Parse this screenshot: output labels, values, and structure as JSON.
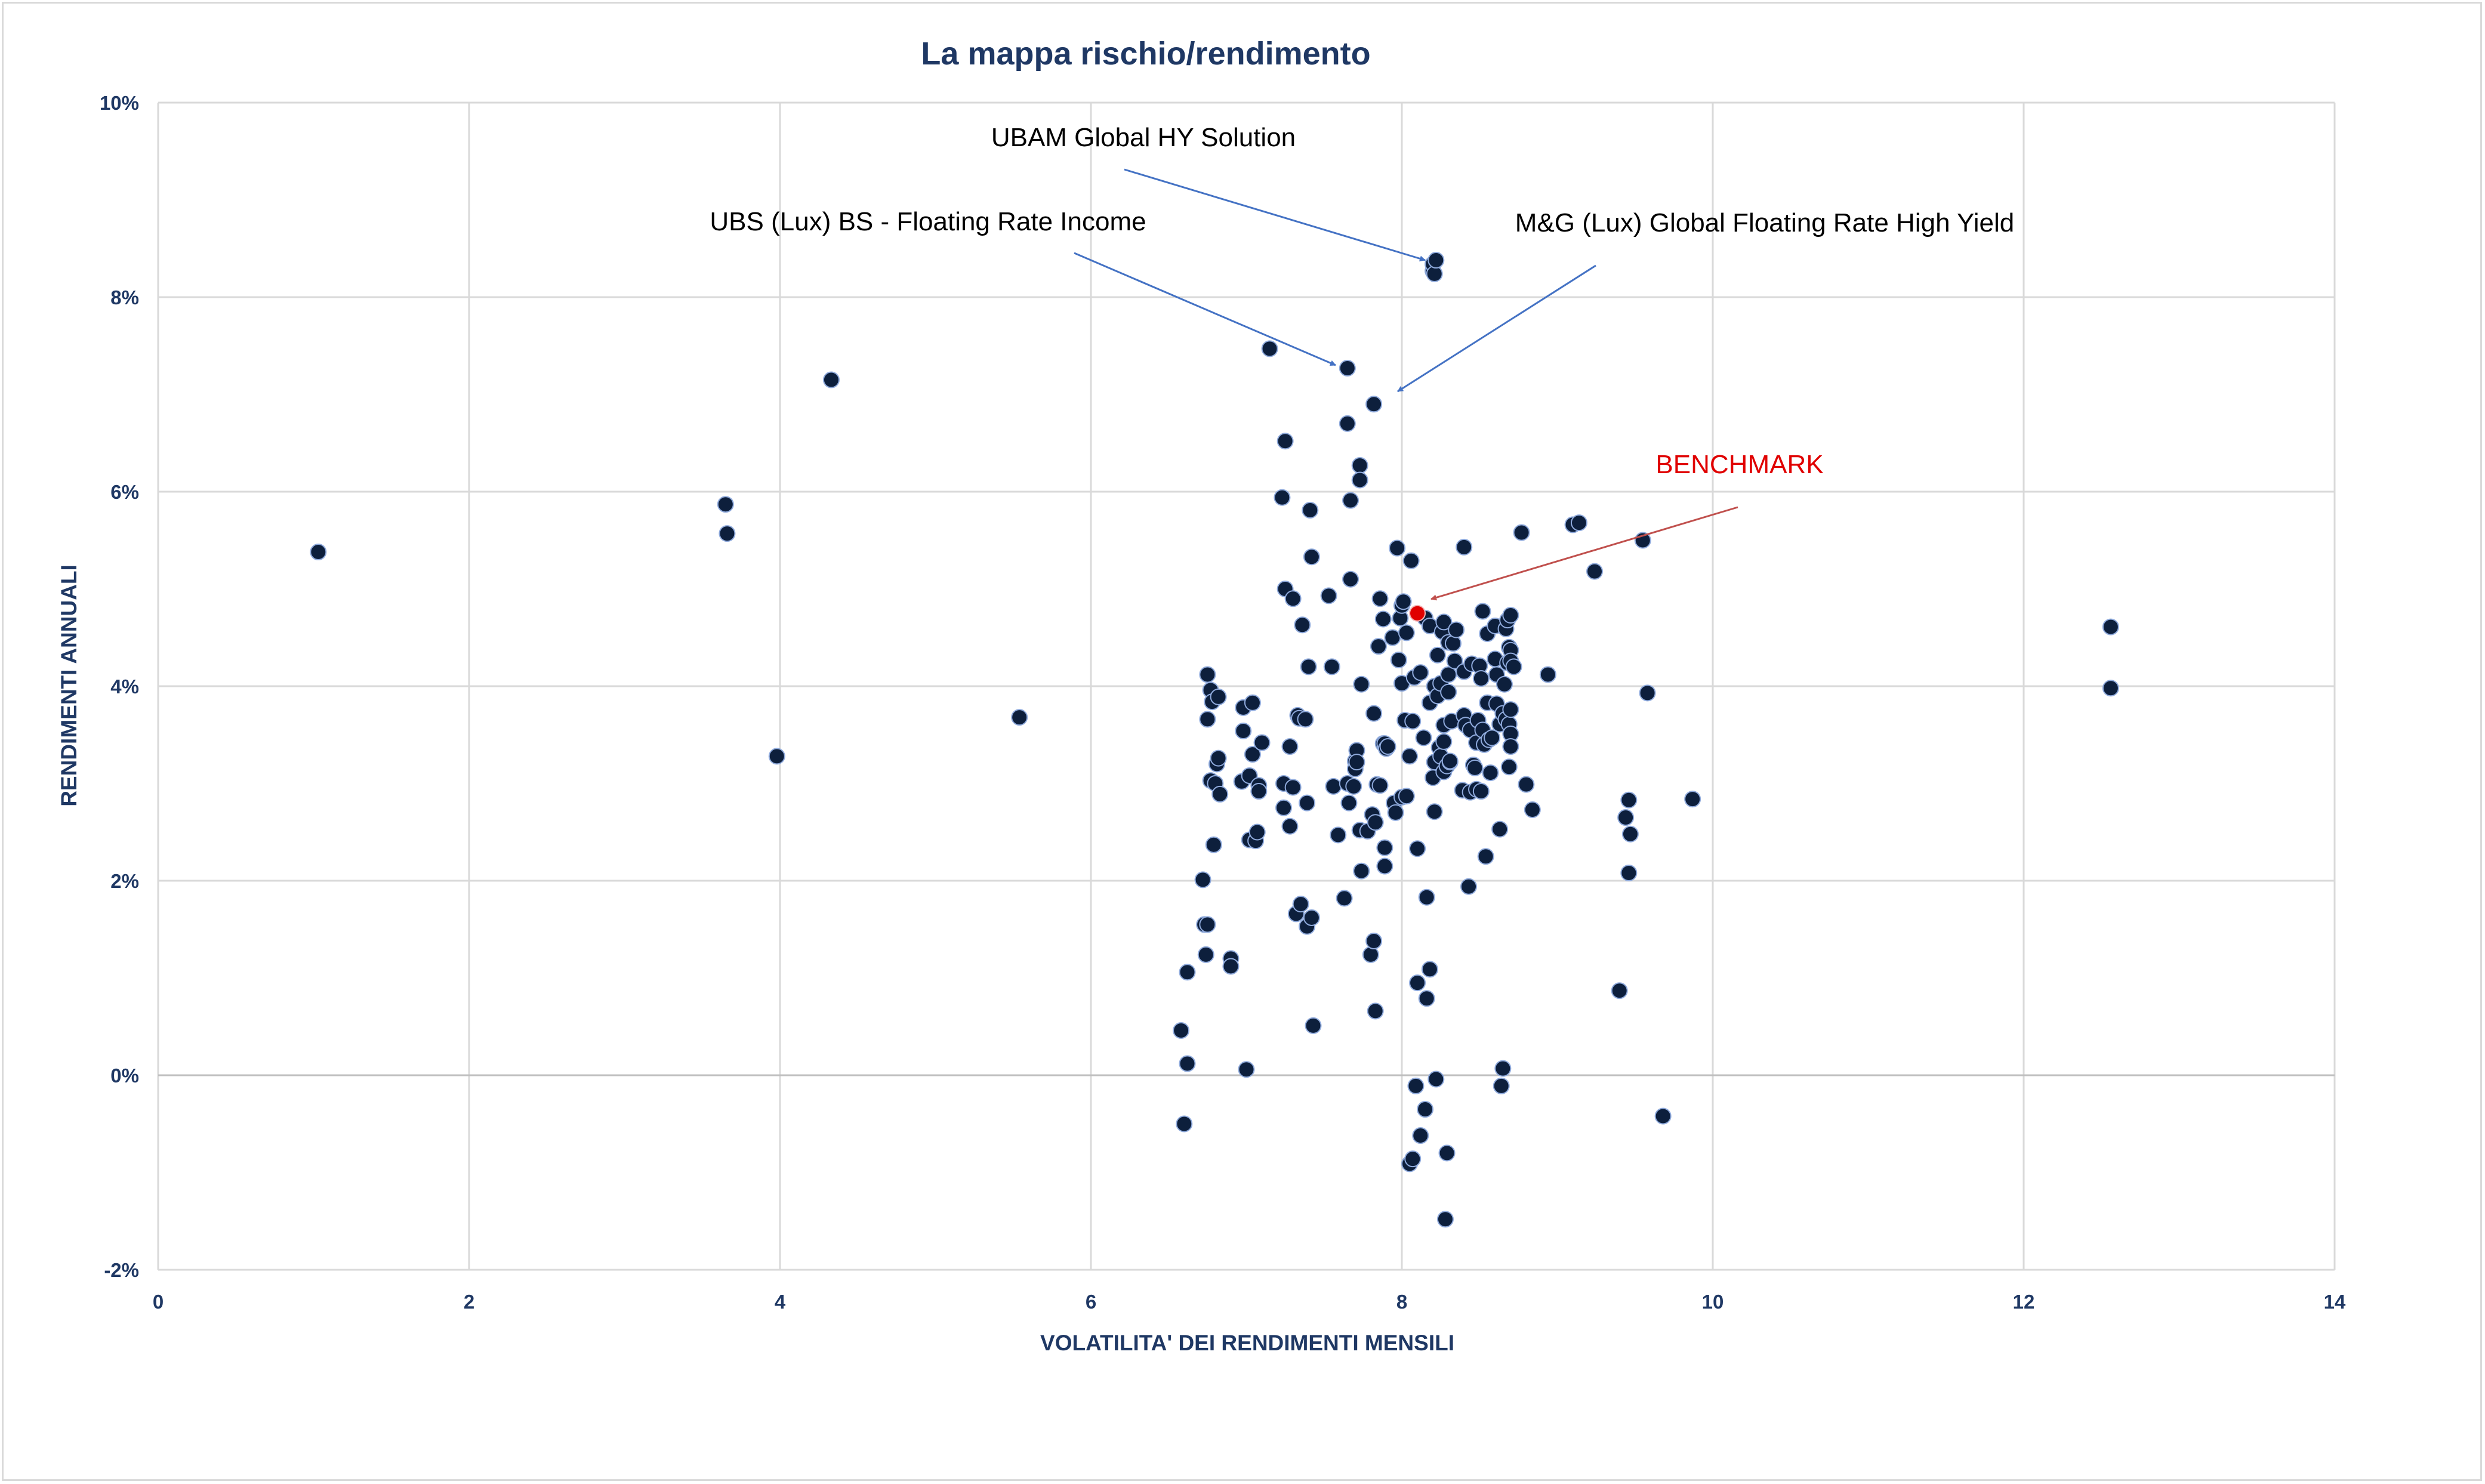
{
  "chart_data": {
    "type": "scatter",
    "title": "La mappa rischio/rendimento",
    "xlabel": "VOLATILITA' DEI RENDIMENTI MENSILI",
    "ylabel": "RENDIMENTI ANNUALI",
    "xlim": [
      0,
      14
    ],
    "ylim": [
      -2,
      10
    ],
    "x_ticks": [
      0,
      2,
      4,
      6,
      8,
      10,
      12,
      14
    ],
    "y_ticks": [
      -2,
      0,
      2,
      4,
      6,
      8,
      10
    ],
    "x_tick_labels": [
      "0",
      "2",
      "4",
      "6",
      "8",
      "10",
      "12",
      "14"
    ],
    "y_tick_labels": [
      "-2%",
      "0%",
      "2%",
      "4%",
      "6%",
      "8%",
      "10%"
    ],
    "grid": true,
    "legend": "none",
    "colors": {
      "points": "#0d1f3c",
      "point_edge": "#8faadc",
      "benchmark": "#e00000",
      "arrow": "#4472c4",
      "benchmark_arrow": "#c0504d",
      "grid": "#d9d9d9",
      "title": "#1f3864"
    },
    "annotations": [
      {
        "text": "UBAM Global HY Solution",
        "color": "#000000"
      },
      {
        "text": "UBS (Lux) BS - Floating Rate Income",
        "color": "#000000"
      },
      {
        "text": "M&G (Lux) Global Floating Rate High Yield",
        "color": "#000000"
      },
      {
        "text": "BENCHMARK",
        "color": "#e00000"
      }
    ],
    "benchmark_point": {
      "x": 8.1,
      "y": 4.75
    },
    "series": [
      {
        "points": [
          [
            1.03,
            5.38
          ],
          [
            3.65,
            5.87
          ],
          [
            3.66,
            5.57
          ],
          [
            3.98,
            3.28
          ],
          [
            4.33,
            7.15
          ],
          [
            5.54,
            3.68
          ],
          [
            6.58,
            0.46
          ],
          [
            6.6,
            -0.5
          ],
          [
            6.62,
            0.12
          ],
          [
            6.62,
            1.06
          ],
          [
            6.72,
            2.01
          ],
          [
            6.73,
            1.55
          ],
          [
            6.74,
            1.24
          ],
          [
            6.75,
            1.55
          ],
          [
            6.75,
            4.12
          ],
          [
            6.75,
            3.66
          ],
          [
            6.77,
            3.03
          ],
          [
            6.77,
            3.96
          ],
          [
            6.78,
            3.84
          ],
          [
            6.79,
            2.37
          ],
          [
            6.8,
            3.0
          ],
          [
            6.81,
            3.2
          ],
          [
            6.82,
            3.26
          ],
          [
            6.82,
            3.89
          ],
          [
            6.83,
            2.89
          ],
          [
            6.9,
            1.2
          ],
          [
            6.9,
            1.12
          ],
          [
            6.97,
            3.02
          ],
          [
            6.98,
            3.78
          ],
          [
            6.98,
            3.54
          ],
          [
            7.0,
            0.06
          ],
          [
            7.02,
            3.08
          ],
          [
            7.02,
            2.42
          ],
          [
            7.04,
            3.3
          ],
          [
            7.04,
            3.83
          ],
          [
            7.06,
            2.41
          ],
          [
            7.07,
            2.5
          ],
          [
            7.08,
            2.98
          ],
          [
            7.08,
            2.92
          ],
          [
            7.1,
            3.42
          ],
          [
            7.15,
            7.47
          ],
          [
            7.23,
            5.94
          ],
          [
            7.24,
            2.75
          ],
          [
            7.24,
            3.0
          ],
          [
            7.25,
            6.52
          ],
          [
            7.25,
            5.0
          ],
          [
            7.28,
            2.56
          ],
          [
            7.28,
            3.38
          ],
          [
            7.3,
            4.9
          ],
          [
            7.3,
            2.96
          ],
          [
            7.32,
            1.66
          ],
          [
            7.33,
            3.7
          ],
          [
            7.34,
            3.67
          ],
          [
            7.35,
            1.76
          ],
          [
            7.36,
            4.63
          ],
          [
            7.38,
            3.66
          ],
          [
            7.39,
            2.8
          ],
          [
            7.39,
            1.53
          ],
          [
            7.4,
            4.2
          ],
          [
            7.41,
            5.81
          ],
          [
            7.42,
            1.62
          ],
          [
            7.42,
            5.33
          ],
          [
            7.43,
            0.51
          ],
          [
            7.53,
            4.93
          ],
          [
            7.55,
            4.2
          ],
          [
            7.56,
            2.97
          ],
          [
            7.59,
            2.47
          ],
          [
            7.63,
            1.82
          ],
          [
            7.65,
            3.0
          ],
          [
            7.65,
            7.27
          ],
          [
            7.65,
            6.7
          ],
          [
            7.66,
            2.8
          ],
          [
            7.67,
            5.1
          ],
          [
            7.67,
            5.91
          ],
          [
            7.69,
            2.97
          ],
          [
            7.7,
            3.23
          ],
          [
            7.7,
            3.15
          ],
          [
            7.71,
            3.34
          ],
          [
            7.71,
            3.22
          ],
          [
            7.73,
            2.52
          ],
          [
            7.73,
            6.27
          ],
          [
            7.73,
            6.12
          ],
          [
            7.74,
            2.1
          ],
          [
            7.74,
            4.02
          ],
          [
            7.78,
            2.51
          ],
          [
            7.8,
            1.24
          ],
          [
            7.81,
            2.68
          ],
          [
            7.82,
            3.72
          ],
          [
            7.82,
            6.9
          ],
          [
            7.82,
            1.38
          ],
          [
            7.83,
            2.6
          ],
          [
            7.83,
            0.66
          ],
          [
            7.84,
            2.99
          ],
          [
            7.85,
            4.41
          ],
          [
            7.86,
            4.9
          ],
          [
            7.86,
            2.98
          ],
          [
            7.88,
            3.41
          ],
          [
            7.88,
            4.69
          ],
          [
            7.89,
            3.41
          ],
          [
            7.89,
            2.15
          ],
          [
            7.89,
            2.34
          ],
          [
            7.9,
            3.36
          ],
          [
            7.91,
            3.38
          ],
          [
            7.94,
            4.5
          ],
          [
            7.95,
            2.8
          ],
          [
            7.96,
            2.7
          ],
          [
            7.97,
            5.42
          ],
          [
            7.98,
            4.27
          ],
          [
            7.99,
            4.7
          ],
          [
            8.0,
            4.83
          ],
          [
            8.0,
            2.86
          ],
          [
            8.0,
            4.03
          ],
          [
            8.01,
            4.87
          ],
          [
            8.02,
            3.65
          ],
          [
            8.03,
            4.55
          ],
          [
            8.03,
            2.87
          ],
          [
            8.05,
            -0.91
          ],
          [
            8.05,
            3.28
          ],
          [
            8.06,
            5.29
          ],
          [
            8.07,
            3.64
          ],
          [
            8.07,
            -0.86
          ],
          [
            8.08,
            4.09
          ],
          [
            8.09,
            -0.11
          ],
          [
            8.1,
            0.95
          ],
          [
            8.1,
            2.33
          ],
          [
            8.12,
            4.14
          ],
          [
            8.12,
            -0.62
          ],
          [
            8.14,
            3.47
          ],
          [
            8.15,
            4.7
          ],
          [
            8.15,
            -0.35
          ],
          [
            8.16,
            0.79
          ],
          [
            8.16,
            1.83
          ],
          [
            8.18,
            1.09
          ],
          [
            8.18,
            3.83
          ],
          [
            8.18,
            4.62
          ],
          [
            8.2,
            3.06
          ],
          [
            8.2,
            8.27
          ],
          [
            8.2,
            8.34
          ],
          [
            8.21,
            3.22
          ],
          [
            8.21,
            2.71
          ],
          [
            8.21,
            4.0
          ],
          [
            8.21,
            8.24
          ],
          [
            8.22,
            -0.04
          ],
          [
            8.22,
            8.38
          ],
          [
            8.23,
            4.32
          ],
          [
            8.23,
            3.9
          ],
          [
            8.24,
            3.37
          ],
          [
            8.25,
            4.03
          ],
          [
            8.25,
            3.28
          ],
          [
            8.26,
            4.56
          ],
          [
            8.27,
            3.43
          ],
          [
            8.27,
            3.12
          ],
          [
            8.27,
            3.6
          ],
          [
            8.27,
            4.66
          ],
          [
            8.28,
            -1.48
          ],
          [
            8.29,
            -0.8
          ],
          [
            8.29,
            3.18
          ],
          [
            8.3,
            4.45
          ],
          [
            8.3,
            4.12
          ],
          [
            8.3,
            3.94
          ],
          [
            8.31,
            3.22
          ],
          [
            8.31,
            3.23
          ],
          [
            8.32,
            3.64
          ],
          [
            8.33,
            4.44
          ],
          [
            8.34,
            4.26
          ],
          [
            8.35,
            4.58
          ],
          [
            8.39,
            2.93
          ],
          [
            8.4,
            5.43
          ],
          [
            8.4,
            3.7
          ],
          [
            8.4,
            4.15
          ],
          [
            8.41,
            3.6
          ],
          [
            8.43,
            1.94
          ],
          [
            8.44,
            2.91
          ],
          [
            8.44,
            3.55
          ],
          [
            8.45,
            4.23
          ],
          [
            8.46,
            3.19
          ],
          [
            8.47,
            3.16
          ],
          [
            8.48,
            3.42
          ],
          [
            8.48,
            2.94
          ],
          [
            8.49,
            3.65
          ],
          [
            8.5,
            4.21
          ],
          [
            8.51,
            2.92
          ],
          [
            8.51,
            4.08
          ],
          [
            8.52,
            3.55
          ],
          [
            8.52,
            4.77
          ],
          [
            8.53,
            3.4
          ],
          [
            8.54,
            2.25
          ],
          [
            8.55,
            4.54
          ],
          [
            8.55,
            3.83
          ],
          [
            8.56,
            3.45
          ],
          [
            8.57,
            3.11
          ],
          [
            8.58,
            3.47
          ],
          [
            8.6,
            4.62
          ],
          [
            8.6,
            4.28
          ],
          [
            8.61,
            3.82
          ],
          [
            8.61,
            4.12
          ],
          [
            8.63,
            3.61
          ],
          [
            8.63,
            2.53
          ],
          [
            8.64,
            -0.11
          ],
          [
            8.65,
            0.07
          ],
          [
            8.65,
            3.72
          ],
          [
            8.66,
            4.02
          ],
          [
            8.67,
            3.66
          ],
          [
            8.67,
            4.59
          ],
          [
            8.68,
            4.24
          ],
          [
            8.68,
            4.68
          ],
          [
            8.69,
            3.61
          ],
          [
            8.69,
            3.17
          ],
          [
            8.69,
            4.4
          ],
          [
            8.7,
            4.37
          ],
          [
            8.7,
            3.76
          ],
          [
            8.7,
            4.26
          ],
          [
            8.7,
            4.73
          ],
          [
            8.7,
            3.51
          ],
          [
            8.7,
            3.38
          ],
          [
            8.72,
            4.2
          ],
          [
            8.77,
            5.58
          ],
          [
            8.8,
            2.99
          ],
          [
            8.84,
            2.73
          ],
          [
            8.94,
            4.12
          ],
          [
            9.1,
            5.66
          ],
          [
            9.14,
            5.68
          ],
          [
            9.24,
            5.18
          ],
          [
            9.4,
            0.87
          ],
          [
            9.44,
            2.65
          ],
          [
            9.46,
            2.83
          ],
          [
            9.46,
            2.08
          ],
          [
            9.47,
            2.48
          ],
          [
            9.55,
            5.5
          ],
          [
            9.58,
            3.93
          ],
          [
            9.68,
            -0.42
          ],
          [
            9.87,
            2.84
          ],
          [
            12.56,
            4.61
          ],
          [
            12.56,
            3.98
          ]
        ]
      }
    ]
  }
}
